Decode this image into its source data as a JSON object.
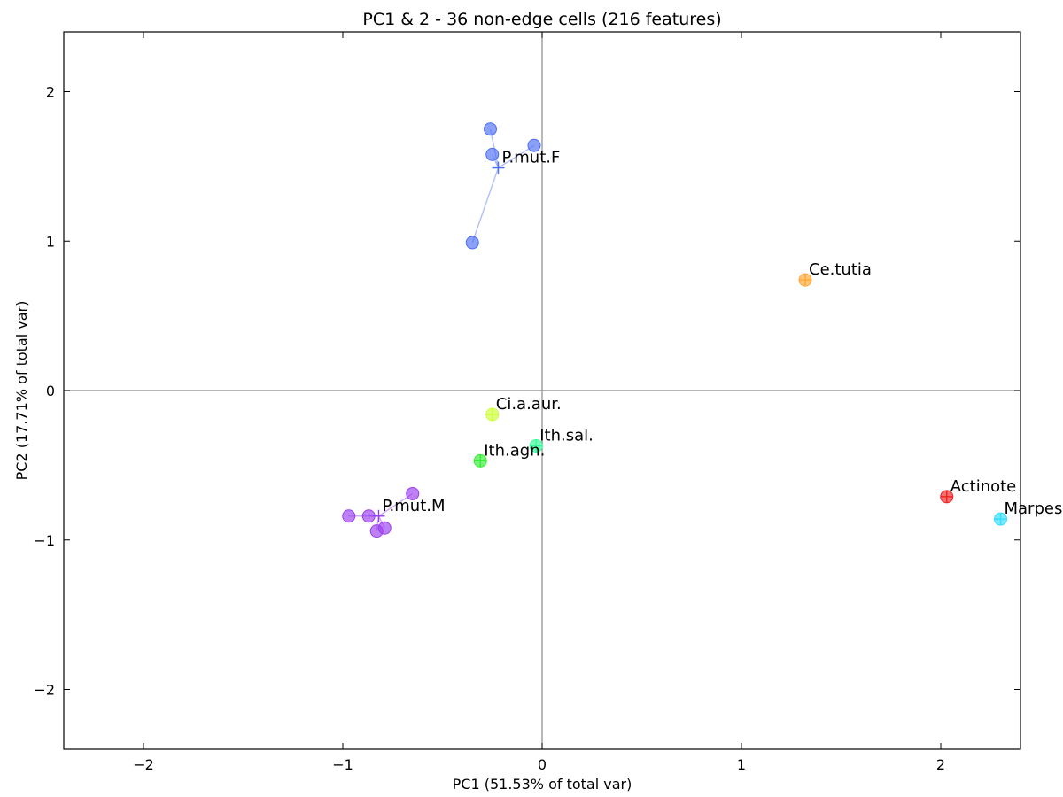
{
  "chart_data": {
    "type": "scatter",
    "title": "PC1 & 2 - 36 non-edge cells (216 features)",
    "xlabel": "PC1 (51.53% of total var)",
    "ylabel": "PC2 (17.71% of total var)",
    "xlim": [
      -2.4,
      2.4
    ],
    "ylim": [
      -2.4,
      2.4
    ],
    "xticks": [
      -2,
      -1,
      0,
      1,
      2
    ],
    "yticks": [
      -2,
      -1,
      0,
      1,
      2
    ],
    "xtick_labels": [
      "−2",
      "−1",
      "0",
      "1",
      "2"
    ],
    "ytick_labels": [
      "−2",
      "−1",
      "0",
      "1",
      "2"
    ],
    "grid": false,
    "zero_lines": true,
    "groups": [
      {
        "label": "P.mut.F",
        "color": "#4d6ef5",
        "centroid": [
          -0.22,
          1.49
        ],
        "points": [
          [
            -0.26,
            1.75
          ],
          [
            -0.25,
            1.58
          ],
          [
            -0.04,
            1.64
          ],
          [
            -0.35,
            0.99
          ]
        ]
      },
      {
        "label": "P.mut.M",
        "color": "#9a3df0",
        "centroid": [
          -0.82,
          -0.84
        ],
        "points": [
          [
            -0.97,
            -0.84
          ],
          [
            -0.87,
            -0.84
          ],
          [
            -0.83,
            -0.94
          ],
          [
            -0.79,
            -0.92
          ],
          [
            -0.65,
            -0.69
          ]
        ]
      },
      {
        "label": "Ce.tutia",
        "color": "#ffa733",
        "centroid": [
          1.32,
          0.74
        ],
        "points": [
          [
            1.32,
            0.74
          ]
        ]
      },
      {
        "label": "Ci.a.aur.",
        "color": "#ccff33",
        "centroid": [
          -0.25,
          -0.16
        ],
        "points": [
          [
            -0.25,
            -0.16
          ]
        ]
      },
      {
        "label": "Ith.sal.",
        "color": "#33ff99",
        "centroid": [
          -0.03,
          -0.37
        ],
        "points": [
          [
            -0.03,
            -0.37
          ]
        ]
      },
      {
        "label": "Ith.agn.",
        "color": "#33ee33",
        "centroid": [
          -0.31,
          -0.47
        ],
        "points": [
          [
            -0.31,
            -0.47
          ]
        ]
      },
      {
        "label": "Actinote",
        "color": "#ee2222",
        "centroid": [
          2.03,
          -0.71
        ],
        "points": [
          [
            2.03,
            -0.71
          ]
        ]
      },
      {
        "label": "Marpes",
        "color": "#33ddff",
        "centroid": [
          2.3,
          -0.86
        ],
        "points": [
          [
            2.3,
            -0.86
          ]
        ]
      }
    ]
  }
}
